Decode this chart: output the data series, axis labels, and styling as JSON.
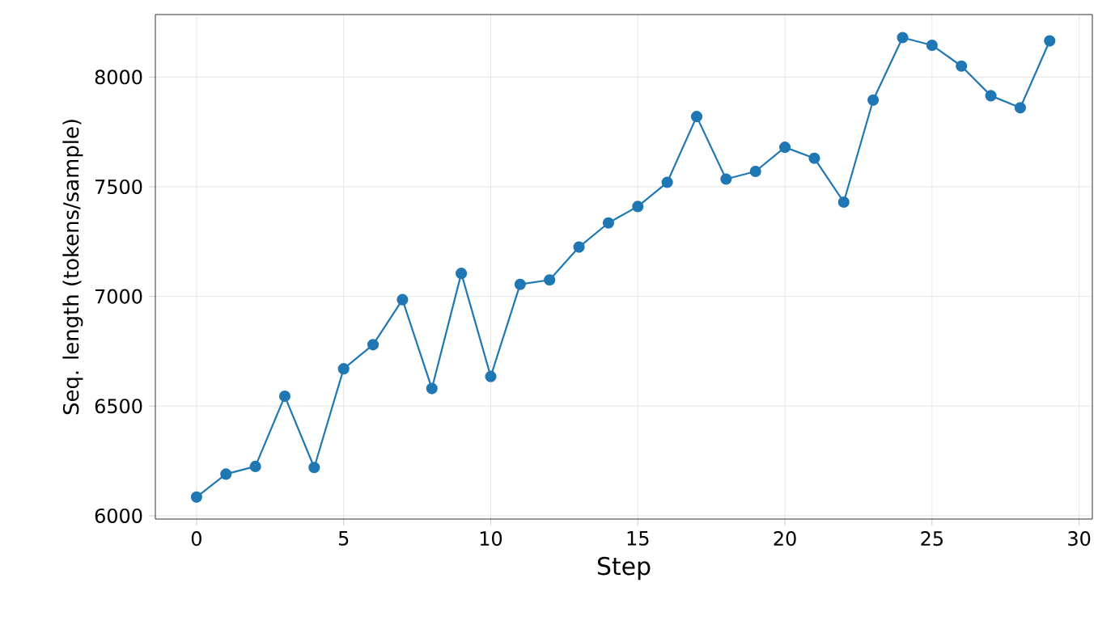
{
  "chart_data": {
    "type": "line",
    "xlabel": "Step",
    "ylabel": "Seq. length (tokens/sample)",
    "x": [
      0,
      1,
      2,
      3,
      4,
      5,
      6,
      7,
      8,
      9,
      10,
      11,
      12,
      13,
      14,
      15,
      16,
      17,
      18,
      19,
      20,
      21,
      22,
      23,
      24,
      25,
      26,
      27,
      28,
      29
    ],
    "series": [
      {
        "color": "#1f77b4",
        "values": [
          6085,
          6190,
          6225,
          6545,
          6220,
          6670,
          6780,
          6985,
          6580,
          7105,
          6635,
          7055,
          7075,
          7225,
          7335,
          7410,
          7520,
          7820,
          7535,
          7570,
          7680,
          7630,
          7430,
          7895,
          8180,
          8145,
          8050,
          7915,
          7860,
          8165
        ]
      }
    ],
    "xlim": [
      -1.4,
      30.45
    ],
    "ylim": [
      5985,
      8285
    ],
    "xticks": [
      0,
      5,
      10,
      15,
      20,
      25,
      30
    ],
    "yticks": [
      6000,
      6500,
      7000,
      7500,
      8000
    ],
    "grid": true,
    "marker": "circle",
    "line_style": "solid"
  }
}
